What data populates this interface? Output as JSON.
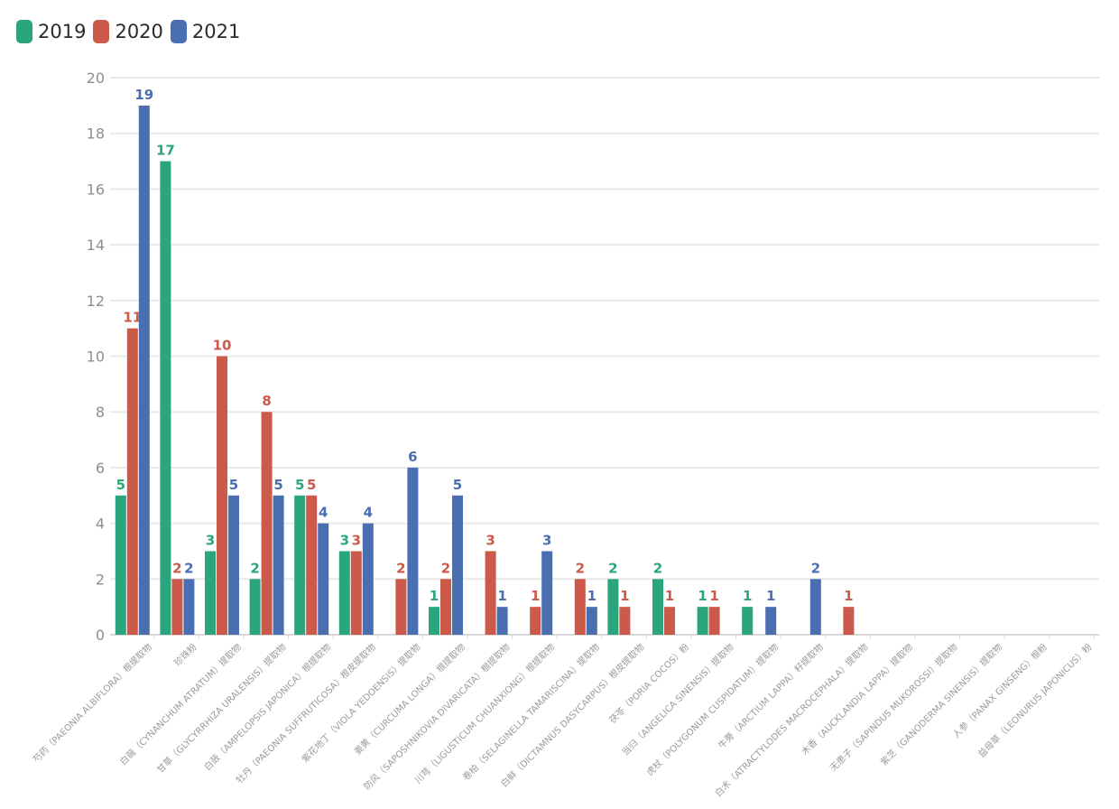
{
  "legend": {
    "items": [
      {
        "label": "2019",
        "color": "#2aa57d"
      },
      {
        "label": "2020",
        "color": "#cc5a4b"
      },
      {
        "label": "2021",
        "color": "#4a6fb0"
      }
    ]
  },
  "chart_data": {
    "type": "bar",
    "title": "",
    "xlabel": "",
    "ylabel": "",
    "ylim": [
      0,
      20
    ],
    "yticks": [
      0,
      2,
      4,
      6,
      8,
      10,
      12,
      14,
      16,
      18,
      20
    ],
    "grid": true,
    "legend_position": "top-left",
    "categories": [
      "芍药（PAEONIA ALBIFLORA）根提取物",
      "珍珠粉",
      "白薇（CYNANCHUM ATRATUM）提取物",
      "甘草（GLYCYRRHIZA URALENSIS）提取物",
      "白蔹（AMPELOPSIS JAPONICA）根提取物",
      "牡丹（PAEONIA SUFFRUTICOSA）根皮提取物",
      "紫花地丁（VIOLA YEDOENSIS）提取物",
      "姜黄（CURCUMA LONGA）根提取物",
      "防风（SAPOSHNIKOVIA DIVARICATA）根提取物",
      "川芎（LIGUSTICUM CHUANXIONG）根提取物",
      "卷柏（SELAGINELLA TAMARISCINA）提取物",
      "白鲜（DICTAMNUS DASYCARPUS）根皮提取物",
      "茯苓（PORIA COCOS）粉",
      "当归（ANGELICA SINENSIS）提取物",
      "虎杖（POLYGONUM CUSPIDATUM）提取物",
      "牛蒡（ARCTIUM LAPPA）籽提取物",
      "白术（ATRACTYLODES MACROCEPHALA）提取物",
      "木香（AUCKLANDIA LAPPA）提取物",
      "无患子（SAPINDUS MUKOROSSI）提取物",
      "紫芝（GANODERMA SINENSIS）提取物",
      "人参（PANAX GINSENG）根粉",
      "益母草（LEONURUS JAPONICUS）粉"
    ],
    "series": [
      {
        "name": "2019",
        "color": "#2aa57d",
        "values": [
          5,
          17,
          3,
          2,
          5,
          3,
          null,
          1,
          null,
          null,
          null,
          2,
          2,
          1,
          1,
          null,
          null,
          null,
          null,
          null,
          null,
          null
        ]
      },
      {
        "name": "2020",
        "color": "#cc5a4b",
        "values": [
          11,
          2,
          10,
          8,
          5,
          3,
          2,
          2,
          3,
          1,
          2,
          1,
          1,
          1,
          null,
          null,
          1,
          null,
          null,
          null,
          null,
          null
        ]
      },
      {
        "name": "2021",
        "color": "#4a6fb0",
        "values": [
          19,
          2,
          5,
          5,
          4,
          4,
          6,
          5,
          1,
          3,
          1,
          null,
          null,
          null,
          1,
          2,
          null,
          null,
          null,
          null,
          null,
          null
        ]
      }
    ]
  }
}
